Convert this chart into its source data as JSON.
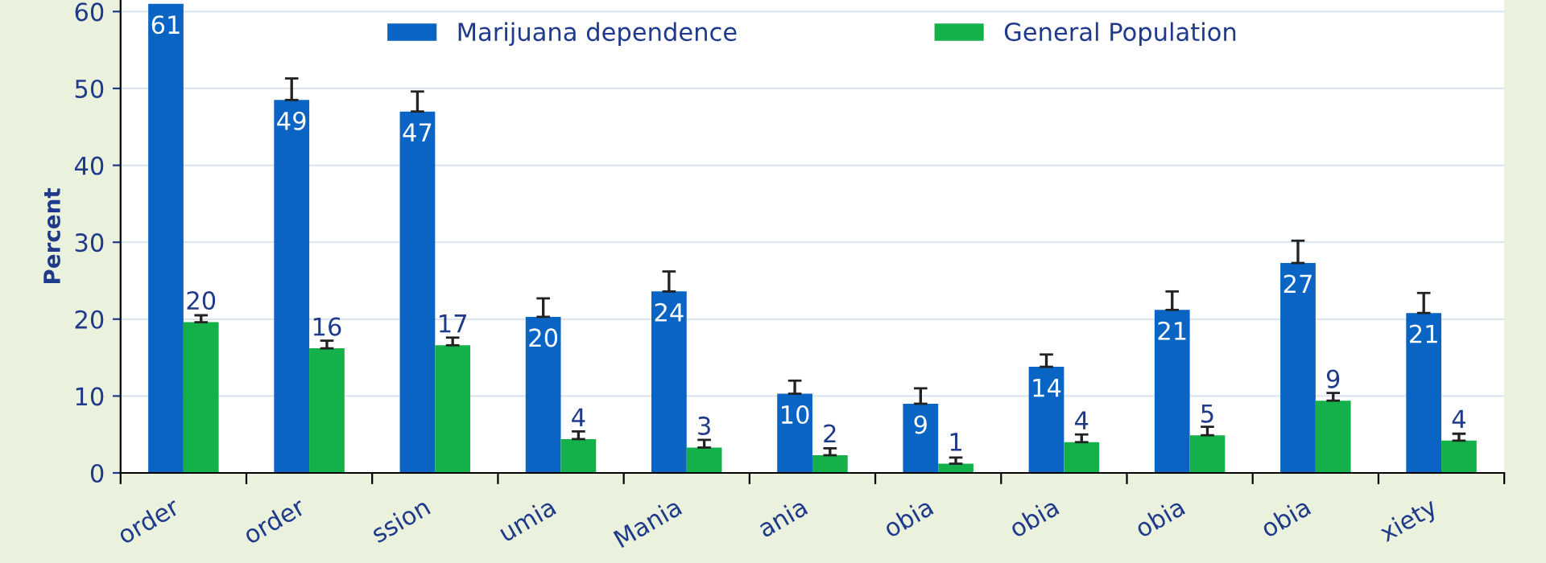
{
  "chart_data": {
    "type": "bar",
    "ylabel": "Percent",
    "categories": [
      "order",
      "order",
      "ssion",
      "umia",
      "Mania",
      "ania",
      "obia",
      "obia",
      "obia",
      "obia",
      "xiety"
    ],
    "series": [
      {
        "name": "Marijuana dependence",
        "color": "#0a64c4",
        "values": [
          61,
          48.5,
          47,
          20.3,
          23.6,
          10.3,
          9,
          13.8,
          21.2,
          27.3,
          20.8
        ],
        "errors": [
          null,
          [
            48.5,
            51.3
          ],
          [
            47,
            49.6
          ],
          [
            20.3,
            22.7
          ],
          [
            23.6,
            26.2
          ],
          [
            10.3,
            12
          ],
          [
            9,
            11
          ],
          [
            13.8,
            15.4
          ],
          [
            21.2,
            23.6
          ],
          [
            27.3,
            30.2
          ],
          [
            20.8,
            23.4
          ]
        ],
        "value_labels": [
          "61",
          "49",
          "47",
          "20",
          "24",
          "10",
          "9",
          "14",
          "21",
          "27",
          "21"
        ]
      },
      {
        "name": "General Population",
        "color": "#14b04a",
        "values": [
          19.6,
          16.2,
          16.6,
          4.4,
          3.3,
          2.3,
          1.2,
          4,
          4.9,
          9.4,
          4.2
        ],
        "errors": [
          [
            19.6,
            20.5
          ],
          [
            16.2,
            17.2
          ],
          [
            16.6,
            17.6
          ],
          [
            4.4,
            5.4
          ],
          [
            3.3,
            4.3
          ],
          [
            2.3,
            3.2
          ],
          [
            1.2,
            2
          ],
          [
            4,
            5
          ],
          [
            4.9,
            6
          ],
          [
            9.4,
            10.4
          ],
          [
            4.2,
            5.1
          ]
        ],
        "value_labels": [
          "20",
          "16",
          "17",
          "4",
          "3",
          "2",
          "1",
          "4",
          "5",
          "9",
          "4"
        ]
      }
    ],
    "ylim": [
      0,
      61.5
    ],
    "yticks": [
      0,
      10,
      20,
      30,
      40,
      50,
      60
    ],
    "grid": "y",
    "legend": "top"
  }
}
